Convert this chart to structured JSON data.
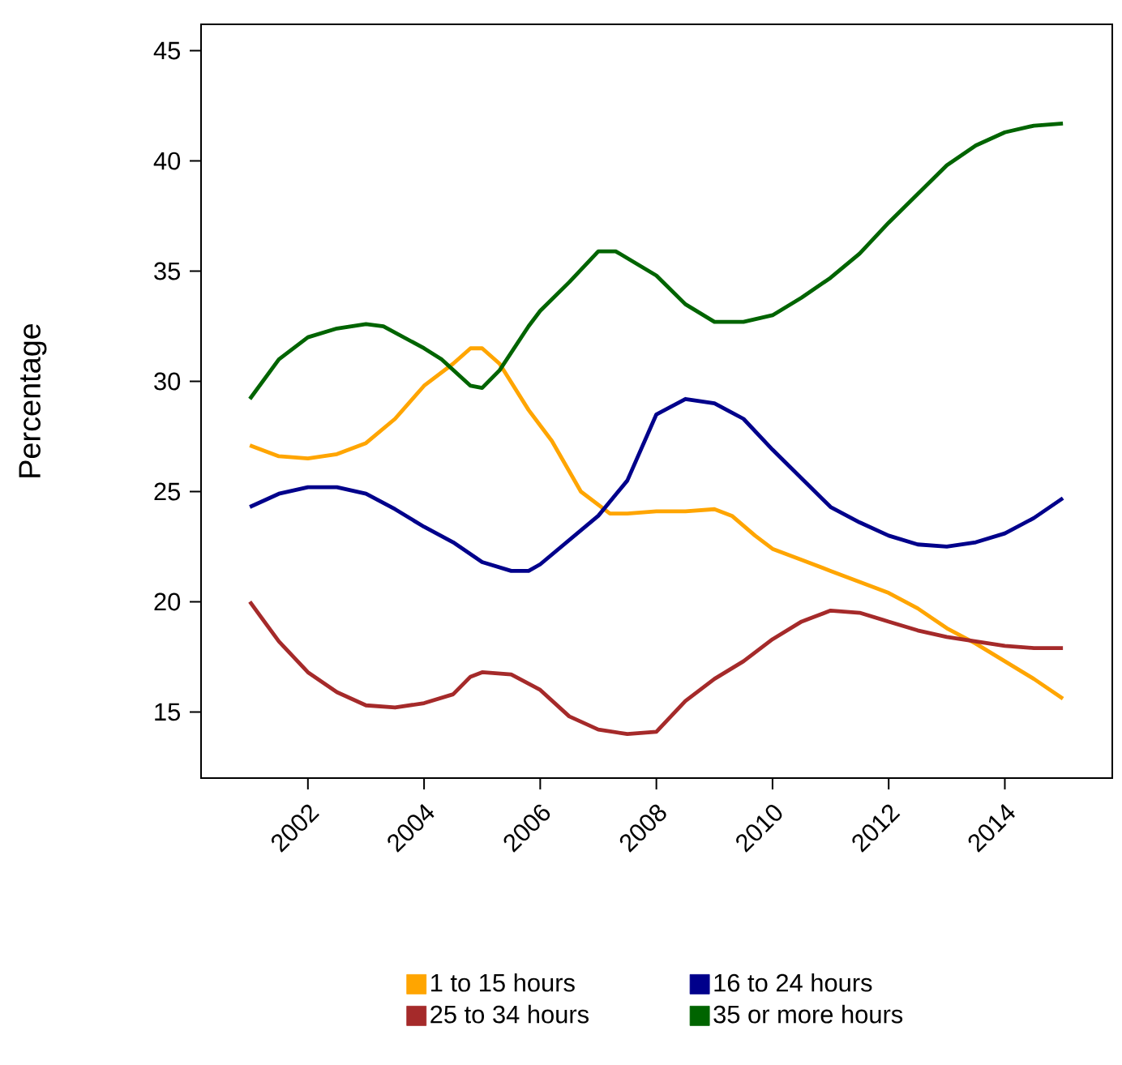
{
  "chart_data": {
    "type": "line",
    "ylabel": "Percentage",
    "xlim": [
      2000.16,
      2015.85
    ],
    "ylim": [
      12.0,
      46.2
    ],
    "xticks": [
      2002,
      2004,
      2006,
      2008,
      2010,
      2012,
      2014
    ],
    "yticks": [
      15,
      20,
      25,
      30,
      35,
      40,
      45
    ],
    "grid": false,
    "legend": "bottom",
    "marker": "none",
    "line_style": "solid",
    "series": [
      {
        "name": "1 to 15 hours",
        "color": "#ffa500",
        "x": [
          2001,
          2001.5,
          2002,
          2002.5,
          2003,
          2003.5,
          2004,
          2004.5,
          2004.8,
          2005,
          2005.3,
          2005.8,
          2006.2,
          2006.7,
          2007.2,
          2007.5,
          2008,
          2008.5,
          2009,
          2009.3,
          2009.7,
          2010,
          2010.5,
          2011,
          2011.5,
          2012,
          2012.5,
          2013,
          2013.5,
          2014,
          2014.5,
          2015
        ],
        "values": [
          27.1,
          26.6,
          26.5,
          26.7,
          27.2,
          28.3,
          29.8,
          30.8,
          31.5,
          31.5,
          30.8,
          28.7,
          27.3,
          25.0,
          24.0,
          24.0,
          24.1,
          24.1,
          24.2,
          23.9,
          23.0,
          22.4,
          21.9,
          21.4,
          20.9,
          20.4,
          19.7,
          18.8,
          18.1,
          17.3,
          16.5,
          15.6
        ]
      },
      {
        "name": "16 to 24 hours",
        "color": "#00008b",
        "x": [
          2001,
          2001.5,
          2002,
          2002.5,
          2003,
          2003.5,
          2004,
          2004.5,
          2005,
          2005.5,
          2005.8,
          2006,
          2006.5,
          2007,
          2007.5,
          2008,
          2008.5,
          2009,
          2009.5,
          2010,
          2010.5,
          2011,
          2011.5,
          2012,
          2012.5,
          2013,
          2013.5,
          2014,
          2014.5,
          2015
        ],
        "values": [
          24.3,
          24.9,
          25.2,
          25.2,
          24.9,
          24.2,
          23.4,
          22.7,
          21.8,
          21.4,
          21.4,
          21.7,
          22.8,
          23.9,
          25.5,
          28.5,
          29.2,
          29.0,
          28.3,
          26.9,
          25.6,
          24.3,
          23.6,
          23.0,
          22.6,
          22.5,
          22.7,
          23.1,
          23.8,
          24.7
        ]
      },
      {
        "name": "25 to 34 hours",
        "color": "#a52a2a",
        "x": [
          2001,
          2001.5,
          2002,
          2002.5,
          2003,
          2003.5,
          2004,
          2004.5,
          2004.8,
          2005,
          2005.5,
          2006,
          2006.5,
          2007,
          2007.5,
          2008,
          2008.5,
          2009,
          2009.5,
          2010,
          2010.5,
          2011,
          2011.5,
          2012,
          2012.5,
          2013,
          2013.5,
          2014,
          2014.5,
          2015
        ],
        "values": [
          20.0,
          18.2,
          16.8,
          15.9,
          15.3,
          15.2,
          15.4,
          15.8,
          16.6,
          16.8,
          16.7,
          16.0,
          14.8,
          14.2,
          14.0,
          14.1,
          15.5,
          16.5,
          17.3,
          18.3,
          19.1,
          19.6,
          19.5,
          19.1,
          18.7,
          18.4,
          18.2,
          18.0,
          17.9,
          17.9
        ]
      },
      {
        "name": "35 or more hours",
        "color": "#006400",
        "x": [
          2001,
          2001.5,
          2002,
          2002.5,
          2003,
          2003.3,
          2004,
          2004.3,
          2004.8,
          2005,
          2005.3,
          2005.8,
          2006,
          2006.5,
          2007,
          2007.3,
          2008,
          2008.5,
          2009,
          2009.5,
          2010,
          2010.5,
          2011,
          2011.5,
          2012,
          2012.5,
          2013,
          2013.5,
          2014,
          2014.5,
          2015
        ],
        "values": [
          29.2,
          31.0,
          32.0,
          32.4,
          32.6,
          32.5,
          31.5,
          31.0,
          29.8,
          29.7,
          30.5,
          32.5,
          33.2,
          34.5,
          35.9,
          35.9,
          34.8,
          33.5,
          32.7,
          32.7,
          33.0,
          33.8,
          34.7,
          35.8,
          37.2,
          38.5,
          39.8,
          40.7,
          41.3,
          41.6,
          41.7
        ]
      }
    ]
  }
}
